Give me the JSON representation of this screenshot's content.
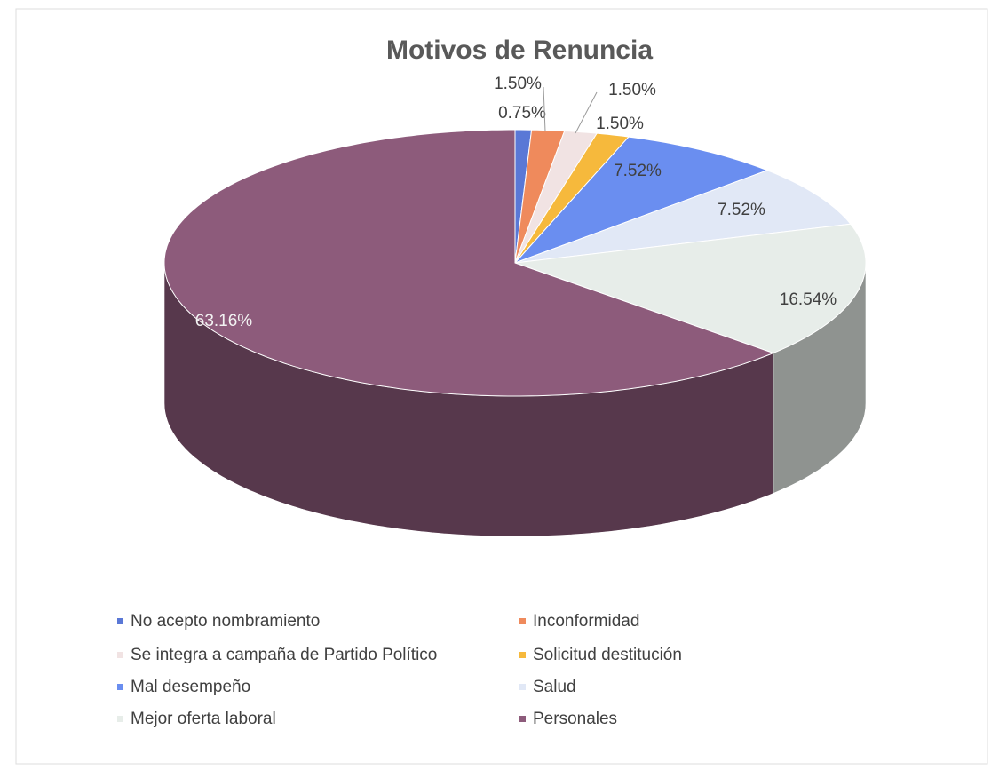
{
  "chart_data": {
    "type": "pie",
    "title": "Motivos de Renuncia",
    "categories": [
      "No acepto nombramiento",
      "Inconformidad",
      "Se integra a campaña de Partido Político",
      "Solicitud destitución",
      "Mal desempeño",
      "Salud",
      "Mejor oferta laboral",
      "Personales"
    ],
    "values": [
      0.75,
      1.5,
      1.5,
      1.5,
      7.52,
      7.52,
      16.54,
      63.16
    ],
    "value_labels": [
      "0.75%",
      "1.50%",
      "1.50%",
      "1.50%",
      "7.52%",
      "7.52%",
      "16.54%",
      "63.16%"
    ],
    "colors": [
      "#5a78d6",
      "#ef8a5c",
      "#f1e3e3",
      "#f6b93c",
      "#6a8ef0",
      "#e1e8f6",
      "#e7ede9",
      "#8d5b7b"
    ],
    "legend": "bottom"
  }
}
